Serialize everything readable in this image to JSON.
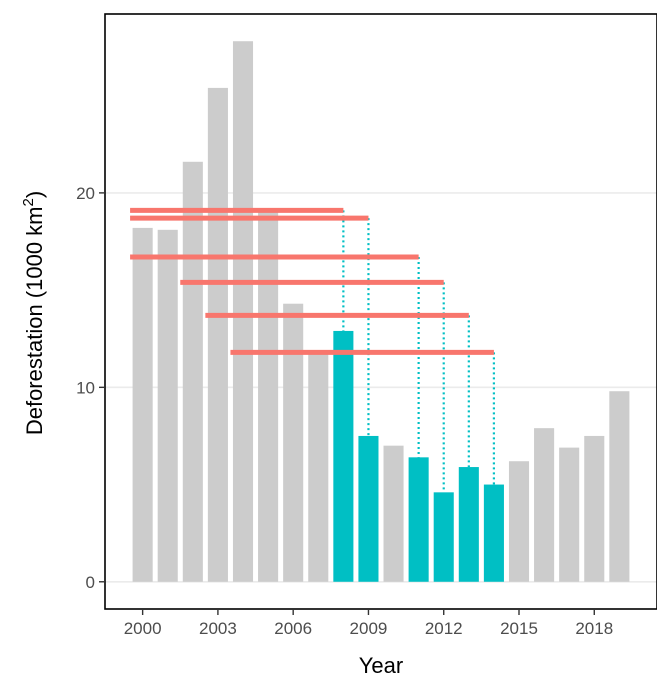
{
  "chart_data": {
    "type": "bar",
    "xlabel": "Year",
    "ylabel": {
      "text": "Deforestation (1000 km",
      "superscript": "2",
      "suffix": ")"
    },
    "x": [
      2000,
      2001,
      2002,
      2003,
      2004,
      2005,
      2006,
      2007,
      2008,
      2009,
      2010,
      2011,
      2012,
      2013,
      2014,
      2015,
      2016,
      2017,
      2018,
      2019
    ],
    "values": [
      18.2,
      18.1,
      21.6,
      25.4,
      27.8,
      19.0,
      14.3,
      11.7,
      12.9,
      7.5,
      7.0,
      6.4,
      4.6,
      5.9,
      5.0,
      6.2,
      7.9,
      6.9,
      7.5,
      9.8
    ],
    "highlighted_years": [
      2008,
      2009,
      2011,
      2012,
      2013,
      2014
    ],
    "reference_lines": [
      {
        "from_year": 2000,
        "to_year": 2008,
        "value": 19.1
      },
      {
        "from_year": 2000,
        "to_year": 2009,
        "value": 18.7
      },
      {
        "from_year": 2000,
        "to_year": 2011,
        "value": 16.7
      },
      {
        "from_year": 2002,
        "to_year": 2012,
        "value": 15.4
      },
      {
        "from_year": 2003,
        "to_year": 2013,
        "value": 13.7
      },
      {
        "from_year": 2004,
        "to_year": 2014,
        "value": 11.8
      }
    ],
    "xticks": [
      2000,
      2003,
      2006,
      2009,
      2012,
      2015,
      2018
    ],
    "yticks": [
      0,
      10,
      20
    ],
    "xlim": [
      1998.5,
      2020.5
    ],
    "ylim": [
      -1.4,
      29.2
    ],
    "grid": true,
    "colors": {
      "bar_default": "#cccccc",
      "bar_highlight": "#00bfc4",
      "reference_line": "#f8766d",
      "connector": "#00bfc4",
      "gridline": "#ebebeb",
      "panel_border": "#000000"
    }
  }
}
